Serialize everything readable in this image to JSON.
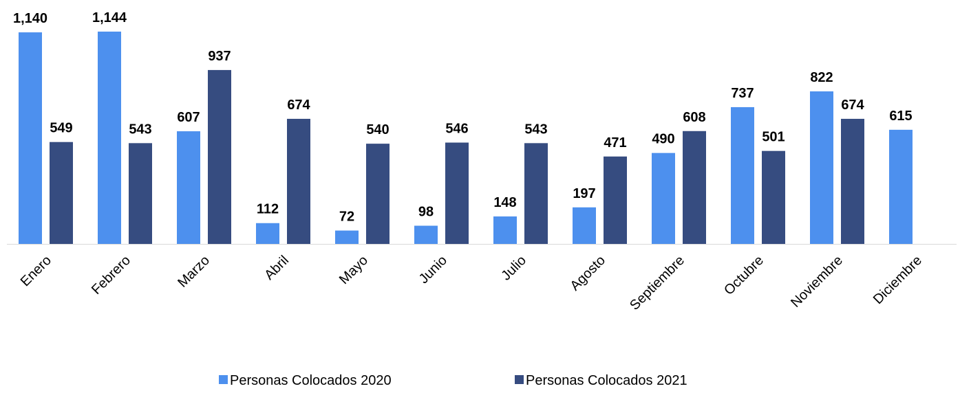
{
  "chart_data": {
    "type": "bar",
    "categories": [
      "Enero",
      "Febrero",
      "Marzo",
      "Abril",
      "Mayo",
      "Junio",
      "Julio",
      "Agosto",
      "Septiembre",
      "Octubre",
      "Noviembre",
      "Diciembre"
    ],
    "series": [
      {
        "name": "Personas Colocados 2020",
        "color": "#4d90ee",
        "values": [
          1140,
          1144,
          607,
          112,
          72,
          98,
          148,
          197,
          490,
          737,
          822,
          615
        ],
        "value_labels": [
          "1,140",
          "1,144",
          "607",
          "112",
          "72",
          "98",
          "148",
          "197",
          "490",
          "737",
          "822",
          "615"
        ]
      },
      {
        "name": "Personas Colocados 2021",
        "color": "#364c80",
        "values": [
          549,
          543,
          937,
          674,
          540,
          546,
          543,
          471,
          608,
          501,
          674,
          null
        ],
        "value_labels": [
          "549",
          "543",
          "937",
          "674",
          "540",
          "546",
          "543",
          "471",
          "608",
          "501",
          "674",
          null
        ]
      }
    ],
    "legend": "bottom"
  }
}
